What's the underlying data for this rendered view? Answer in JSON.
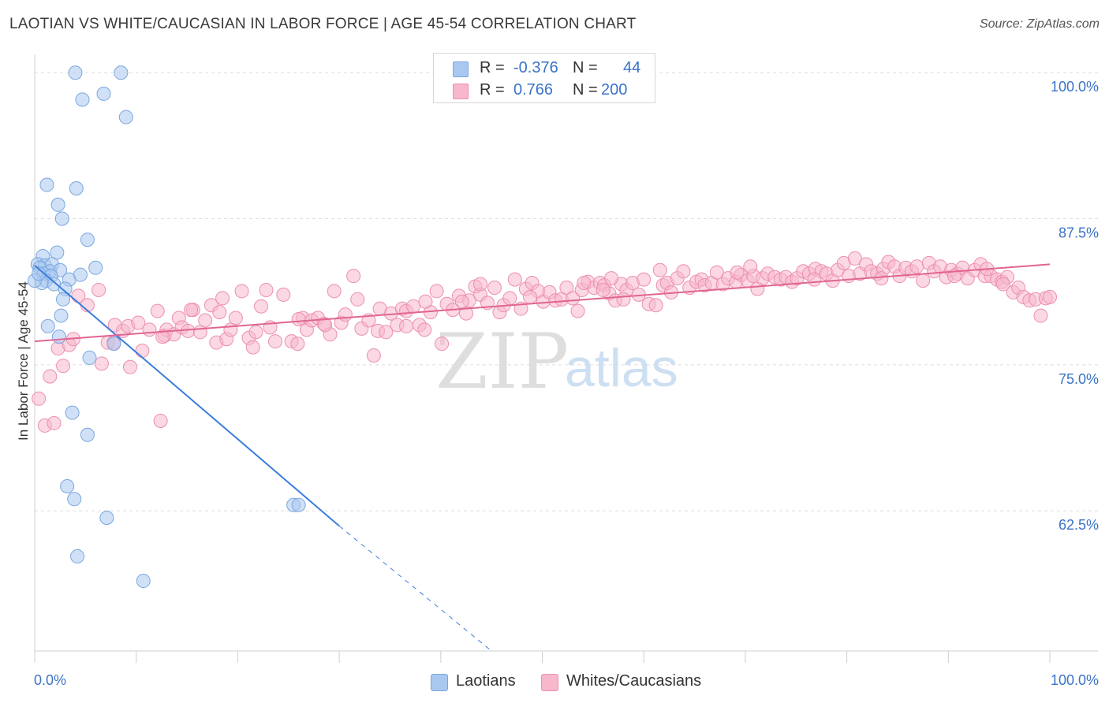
{
  "title": "LAOTIAN VS WHITE/CAUCASIAN IN LABOR FORCE | AGE 45-54 CORRELATION CHART",
  "source": "Source: ZipAtlas.com",
  "legend": {
    "r_label": "R =",
    "n_label": "N =",
    "rows": [
      {
        "r": "-0.376",
        "n": "44",
        "color": "#a9c8f0",
        "border": "#7aa6df"
      },
      {
        "r": "0.766",
        "n": "200",
        "color": "#f7b8cc",
        "border": "#ec8fae"
      }
    ]
  },
  "bottom_legend": [
    {
      "label": "Laotians",
      "color": "#a9c8f0",
      "border": "#7aa6df"
    },
    {
      "label": "Whites/Caucasians",
      "color": "#f7b8cc",
      "border": "#ec8fae"
    }
  ],
  "watermark": {
    "zip": "ZIP",
    "atlas": "atlas"
  },
  "chart_data": {
    "type": "scatter",
    "title": "LAOTIAN VS WHITE/CAUCASIAN IN LABOR FORCE | AGE 45-54 CORRELATION CHART",
    "xlabel": "",
    "ylabel": "In Labor Force | Age 45-54",
    "xlim": [
      0,
      100
    ],
    "ylim": [
      50.5,
      101.5
    ],
    "x_tick_labels": [
      "0.0%",
      "100.0%"
    ],
    "y_ticks": [
      62.5,
      75.0,
      87.5,
      100.0
    ],
    "y_tick_labels": [
      "62.5%",
      "75.0%",
      "87.5%",
      "100.0%"
    ],
    "grid": true,
    "legend_position": "top-center",
    "series": [
      {
        "name": "Laotians",
        "color": "#a9c8f0",
        "stroke": "#7aa6df",
        "trend": {
          "x0": 0.0,
          "y0": 83.5,
          "x1": 30.0,
          "y1": 61.2,
          "dash_x1": 45.0,
          "dash_y1": 50.5,
          "color": "#3b7ddd"
        },
        "points": [
          [
            4.0,
            100.0
          ],
          [
            8.5,
            100.0
          ],
          [
            4.7,
            97.7
          ],
          [
            6.8,
            98.2
          ],
          [
            9.0,
            96.2
          ],
          [
            1.2,
            90.4
          ],
          [
            4.1,
            90.1
          ],
          [
            2.3,
            88.7
          ],
          [
            2.7,
            87.5
          ],
          [
            5.2,
            85.7
          ],
          [
            2.2,
            84.6
          ],
          [
            0.8,
            84.3
          ],
          [
            0.3,
            83.6
          ],
          [
            1.0,
            83.5
          ],
          [
            1.7,
            83.6
          ],
          [
            0.5,
            83.3
          ],
          [
            1.5,
            83.0
          ],
          [
            2.5,
            83.1
          ],
          [
            6.0,
            83.3
          ],
          [
            0.9,
            82.8
          ],
          [
            1.6,
            82.6
          ],
          [
            1.1,
            82.2
          ],
          [
            0.7,
            82.0
          ],
          [
            3.4,
            82.3
          ],
          [
            4.5,
            82.7
          ],
          [
            1.9,
            81.9
          ],
          [
            3.0,
            81.5
          ],
          [
            2.8,
            80.6
          ],
          [
            2.6,
            79.2
          ],
          [
            1.3,
            78.3
          ],
          [
            2.4,
            77.4
          ],
          [
            7.8,
            76.8
          ],
          [
            5.4,
            75.6
          ],
          [
            3.7,
            70.9
          ],
          [
            5.2,
            69.0
          ],
          [
            3.2,
            64.6
          ],
          [
            3.9,
            63.5
          ],
          [
            7.1,
            61.9
          ],
          [
            4.2,
            58.6
          ],
          [
            10.7,
            56.5
          ],
          [
            25.5,
            63.0
          ],
          [
            26.0,
            63.0
          ],
          [
            0.0,
            82.2
          ],
          [
            0.4,
            82.8
          ]
        ]
      },
      {
        "name": "Whites/Caucasians",
        "color": "#f7b8cc",
        "stroke": "#ec8fae",
        "trend": {
          "x0": 0.0,
          "y0": 77.0,
          "x1": 100.0,
          "y1": 83.6,
          "color": "#e06592"
        },
        "points": [
          [
            0.4,
            72.1
          ],
          [
            1.0,
            69.8
          ],
          [
            1.5,
            74.0
          ],
          [
            1.9,
            70.0
          ],
          [
            2.3,
            76.4
          ],
          [
            2.8,
            74.9
          ],
          [
            3.4,
            76.7
          ],
          [
            3.8,
            77.2
          ],
          [
            4.3,
            80.9
          ],
          [
            5.2,
            80.1
          ],
          [
            6.3,
            81.4
          ],
          [
            6.6,
            75.1
          ],
          [
            7.2,
            76.9
          ],
          [
            7.8,
            76.9
          ],
          [
            7.9,
            78.4
          ],
          [
            8.7,
            77.9
          ],
          [
            9.2,
            78.3
          ],
          [
            9.4,
            74.8
          ],
          [
            10.2,
            78.6
          ],
          [
            10.6,
            76.2
          ],
          [
            11.3,
            78.0
          ],
          [
            12.1,
            79.6
          ],
          [
            12.4,
            70.2
          ],
          [
            12.8,
            77.5
          ],
          [
            13.0,
            78.0
          ],
          [
            13.7,
            77.6
          ],
          [
            14.2,
            79.0
          ],
          [
            14.5,
            78.2
          ],
          [
            15.1,
            77.9
          ],
          [
            15.6,
            79.7
          ],
          [
            16.3,
            77.8
          ],
          [
            16.8,
            78.8
          ],
          [
            17.4,
            80.1
          ],
          [
            17.9,
            76.9
          ],
          [
            18.5,
            80.7
          ],
          [
            18.9,
            77.2
          ],
          [
            19.3,
            78.0
          ],
          [
            19.8,
            79.0
          ],
          [
            20.4,
            81.3
          ],
          [
            21.1,
            77.3
          ],
          [
            21.5,
            76.5
          ],
          [
            22.3,
            80.0
          ],
          [
            22.8,
            81.4
          ],
          [
            23.2,
            78.2
          ],
          [
            23.7,
            77.0
          ],
          [
            24.5,
            81.0
          ],
          [
            25.3,
            77.0
          ],
          [
            25.9,
            76.8
          ],
          [
            26.4,
            79.0
          ],
          [
            26.8,
            78.0
          ],
          [
            27.3,
            78.8
          ],
          [
            27.9,
            79.0
          ],
          [
            28.5,
            78.5
          ],
          [
            29.1,
            77.6
          ],
          [
            29.5,
            81.3
          ],
          [
            30.2,
            78.6
          ],
          [
            30.6,
            79.3
          ],
          [
            31.4,
            82.6
          ],
          [
            31.8,
            80.6
          ],
          [
            32.2,
            78.1
          ],
          [
            32.9,
            78.8
          ],
          [
            33.4,
            75.8
          ],
          [
            33.8,
            77.9
          ],
          [
            34.6,
            77.8
          ],
          [
            35.1,
            79.4
          ],
          [
            35.7,
            78.4
          ],
          [
            36.2,
            79.8
          ],
          [
            36.6,
            79.6
          ],
          [
            37.3,
            80.0
          ],
          [
            37.9,
            78.4
          ],
          [
            38.4,
            78.0
          ],
          [
            39.0,
            79.5
          ],
          [
            39.6,
            81.3
          ],
          [
            40.1,
            76.8
          ],
          [
            40.6,
            80.2
          ],
          [
            41.2,
            79.7
          ],
          [
            41.8,
            80.9
          ],
          [
            42.5,
            79.4
          ],
          [
            42.8,
            80.5
          ],
          [
            43.4,
            81.7
          ],
          [
            43.9,
            81.0
          ],
          [
            44.6,
            80.3
          ],
          [
            45.3,
            81.6
          ],
          [
            45.8,
            79.5
          ],
          [
            46.2,
            80.1
          ],
          [
            46.8,
            80.7
          ],
          [
            47.3,
            82.3
          ],
          [
            47.9,
            79.8
          ],
          [
            48.4,
            81.5
          ],
          [
            49.0,
            82.0
          ],
          [
            49.6,
            81.3
          ],
          [
            50.1,
            80.4
          ],
          [
            50.7,
            81.2
          ],
          [
            51.3,
            80.5
          ],
          [
            51.9,
            80.6
          ],
          [
            52.4,
            81.6
          ],
          [
            53.0,
            80.7
          ],
          [
            53.5,
            79.6
          ],
          [
            53.9,
            81.4
          ],
          [
            54.5,
            82.1
          ],
          [
            55.1,
            81.6
          ],
          [
            55.7,
            82.0
          ],
          [
            56.1,
            81.8
          ],
          [
            56.6,
            81.1
          ],
          [
            57.2,
            80.5
          ],
          [
            57.8,
            81.9
          ],
          [
            58.3,
            81.4
          ],
          [
            58.9,
            82.0
          ],
          [
            59.5,
            81.0
          ],
          [
            60.0,
            82.3
          ],
          [
            60.5,
            80.2
          ],
          [
            61.2,
            80.1
          ],
          [
            61.9,
            81.8
          ],
          [
            62.3,
            82.0
          ],
          [
            62.7,
            81.2
          ],
          [
            63.3,
            82.4
          ],
          [
            63.9,
            83.0
          ],
          [
            64.5,
            81.6
          ],
          [
            65.2,
            82.1
          ],
          [
            65.7,
            82.3
          ],
          [
            66.0,
            81.8
          ],
          [
            66.7,
            82.0
          ],
          [
            67.2,
            82.9
          ],
          [
            67.8,
            81.9
          ],
          [
            68.3,
            82.4
          ],
          [
            69.1,
            82.1
          ],
          [
            69.6,
            82.7
          ],
          [
            70.2,
            82.2
          ],
          [
            70.8,
            82.6
          ],
          [
            71.2,
            81.5
          ],
          [
            71.7,
            82.4
          ],
          [
            72.2,
            82.8
          ],
          [
            72.9,
            82.5
          ],
          [
            73.5,
            82.3
          ],
          [
            74.0,
            82.5
          ],
          [
            74.6,
            82.1
          ],
          [
            75.1,
            82.4
          ],
          [
            75.7,
            83.0
          ],
          [
            76.3,
            82.8
          ],
          [
            76.9,
            83.2
          ],
          [
            77.5,
            83.0
          ],
          [
            78.0,
            82.8
          ],
          [
            78.6,
            82.2
          ],
          [
            79.1,
            83.1
          ],
          [
            79.7,
            83.7
          ],
          [
            80.2,
            82.6
          ],
          [
            80.8,
            84.1
          ],
          [
            81.3,
            82.8
          ],
          [
            81.9,
            83.6
          ],
          [
            82.4,
            83.0
          ],
          [
            83.0,
            82.8
          ],
          [
            83.6,
            83.2
          ],
          [
            84.1,
            83.8
          ],
          [
            84.7,
            83.4
          ],
          [
            85.2,
            82.6
          ],
          [
            85.8,
            83.3
          ],
          [
            86.4,
            83.0
          ],
          [
            86.9,
            83.4
          ],
          [
            87.5,
            82.2
          ],
          [
            88.1,
            83.7
          ],
          [
            88.6,
            83.0
          ],
          [
            89.2,
            83.4
          ],
          [
            89.8,
            82.5
          ],
          [
            90.3,
            83.1
          ],
          [
            90.9,
            82.8
          ],
          [
            91.4,
            83.3
          ],
          [
            91.9,
            82.4
          ],
          [
            92.6,
            83.1
          ],
          [
            93.2,
            83.6
          ],
          [
            93.6,
            82.6
          ],
          [
            94.2,
            82.6
          ],
          [
            94.8,
            82.3
          ],
          [
            95.3,
            82.1
          ],
          [
            95.8,
            82.5
          ],
          [
            96.4,
            81.2
          ],
          [
            96.9,
            81.6
          ],
          [
            97.4,
            80.8
          ],
          [
            98.0,
            80.5
          ],
          [
            98.6,
            80.6
          ],
          [
            99.1,
            79.2
          ],
          [
            99.6,
            80.7
          ],
          [
            100.0,
            80.8
          ],
          [
            56.0,
            81.4
          ],
          [
            58.0,
            80.6
          ],
          [
            54.1,
            82.0
          ],
          [
            56.8,
            82.4
          ],
          [
            83.4,
            82.4
          ],
          [
            90.6,
            82.6
          ],
          [
            42.1,
            80.4
          ],
          [
            95.4,
            81.9
          ],
          [
            93.8,
            83.2
          ],
          [
            36.6,
            78.3
          ],
          [
            70.5,
            83.4
          ],
          [
            76.8,
            82.3
          ],
          [
            61.6,
            83.1
          ],
          [
            43.9,
            81.9
          ],
          [
            69.2,
            82.9
          ],
          [
            26.0,
            78.9
          ],
          [
            38.5,
            80.4
          ],
          [
            18.2,
            79.5
          ],
          [
            15.4,
            79.7
          ],
          [
            28.6,
            78.4
          ],
          [
            21.8,
            77.8
          ],
          [
            12.6,
            77.4
          ],
          [
            34.0,
            79.8
          ],
          [
            48.8,
            80.8
          ]
        ]
      }
    ]
  }
}
